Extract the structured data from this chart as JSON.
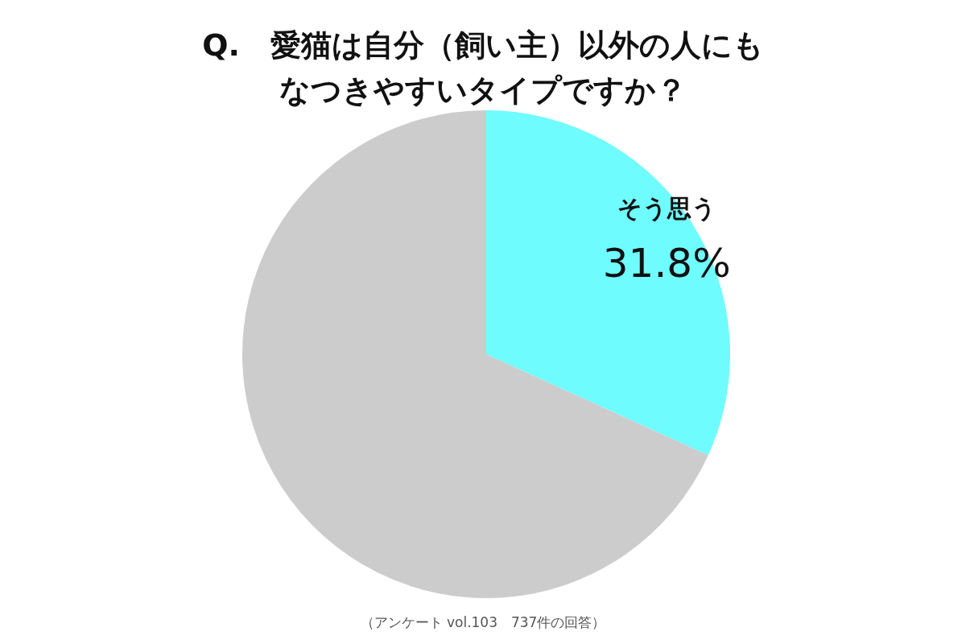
{
  "chart_data": {
    "type": "pie",
    "title": "Q.　愛猫は自分（飼い主）以外の人にもなつきやすいタイプですか？",
    "categories": [
      "そう思う",
      null
    ],
    "values": [
      31.8,
      68.2
    ],
    "colors": [
      "#6ffcff",
      "#cccccc"
    ],
    "value_labels": [
      "31.8%",
      null
    ],
    "legend": false,
    "annotations": [
      "（アンケート vol.103　737件の回答）"
    ]
  }
}
